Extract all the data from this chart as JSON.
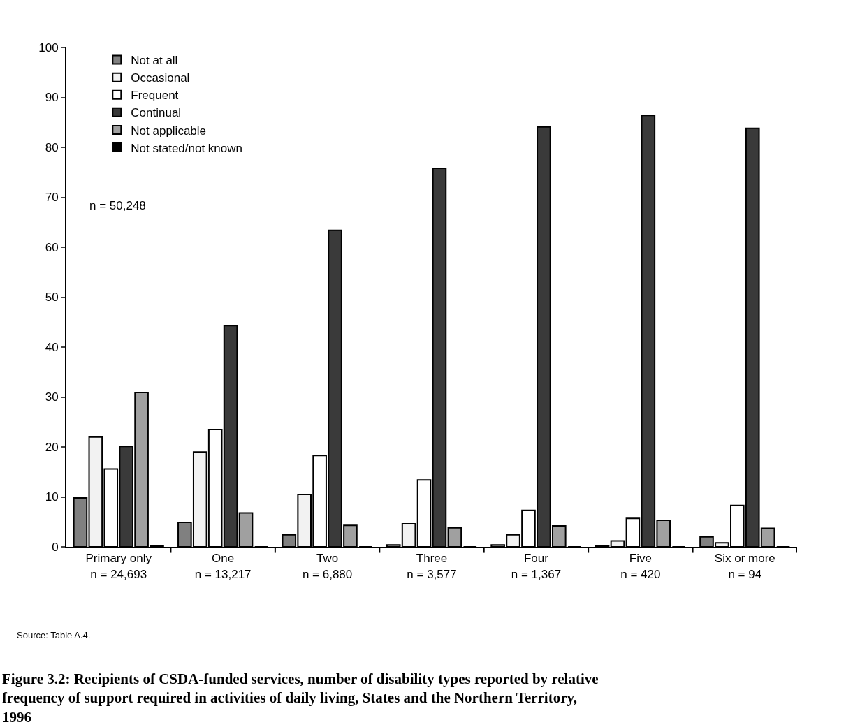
{
  "chart_data": {
    "type": "bar",
    "title": "Figure 3.2: Recipients of CSDA-funded services, number of disability types reported by relative frequency of support required in activities of daily living, States and the Northern Territory, 1996",
    "categories": [
      "Primary only\nn = 24,693",
      "One\nn = 13,217",
      "Two\nn = 6,880",
      "Three\nn = 3,577",
      "Four\nn = 1,367",
      "Five\nn = 420",
      "Six or more\nn = 94"
    ],
    "series": [
      {
        "name": "Not at all",
        "color": "#808080",
        "values": [
          9.8,
          4.9,
          2.4,
          0.4,
          0.4,
          0.2,
          2.0
        ]
      },
      {
        "name": "Occasional",
        "color": "#f2f2f2",
        "values": [
          22,
          19,
          10.5,
          4.6,
          2.4,
          1.2,
          0.8
        ]
      },
      {
        "name": "Frequent",
        "color": "#ffffff",
        "values": [
          15.6,
          23.5,
          18.3,
          13.4,
          7.3,
          5.7,
          8.3
        ]
      },
      {
        "name": "Continual",
        "color": "#3a3a3a",
        "values": [
          20.1,
          44.3,
          63.4,
          75.8,
          84.1,
          86.4,
          83.8
        ]
      },
      {
        "name": "Not applicable",
        "color": "#a0a0a0",
        "values": [
          30.9,
          6.8,
          4.3,
          3.8,
          4.2,
          5.3,
          3.7
        ]
      },
      {
        "name": "Not stated/not known",
        "color": "#000000",
        "values": [
          0.2,
          0,
          0,
          0,
          0,
          0,
          0
        ]
      }
    ],
    "ylim": [
      0,
      100
    ],
    "yticks": [
      0,
      10,
      20,
      30,
      40,
      50,
      60,
      70,
      80,
      90,
      100
    ],
    "grid": false,
    "legend": "top left",
    "annotations": [
      "n = 50,248",
      "Source: Table A.4."
    ]
  }
}
